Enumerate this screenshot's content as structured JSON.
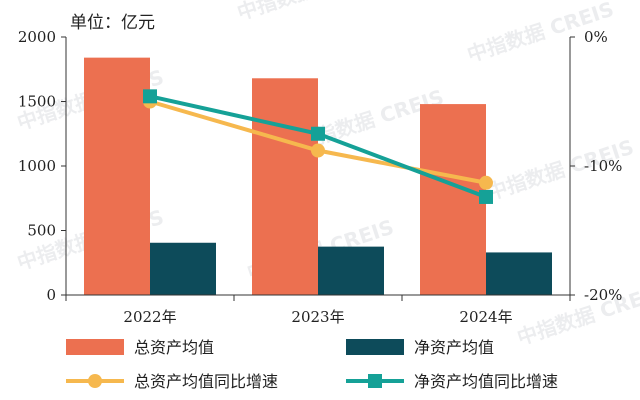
{
  "chart_data": {
    "type": "bar",
    "unit_label": "单位：亿元",
    "categories": [
      "2022年",
      "2023年",
      "2024年"
    ],
    "series": [
      {
        "name": "总资产均值",
        "kind": "bar",
        "axis": "left",
        "values": [
          1840,
          1680,
          1480
        ],
        "color": "#ec7050"
      },
      {
        "name": "净资产均值",
        "kind": "bar",
        "axis": "left",
        "values": [
          405,
          375,
          330
        ],
        "color": "#0d4b5a"
      },
      {
        "name": "总资产均值同比增速",
        "kind": "line",
        "axis": "right",
        "values": [
          -5.0,
          -8.8,
          -11.3
        ],
        "color": "#f6b84e"
      },
      {
        "name": "净资产均值同比增速",
        "kind": "line",
        "axis": "right",
        "values": [
          -4.6,
          -7.5,
          -12.4
        ],
        "color": "#15a197"
      }
    ],
    "left_axis": {
      "ylim": [
        0,
        2000
      ],
      "ticks": [
        "0",
        "500",
        "1000",
        "1500",
        "2000"
      ]
    },
    "right_axis": {
      "ylim": [
        -20,
        0
      ],
      "ticks": [
        "-20%",
        "-10%",
        "0%"
      ]
    },
    "watermark": "中指数据 CREIS",
    "legend_position": "bottom"
  }
}
